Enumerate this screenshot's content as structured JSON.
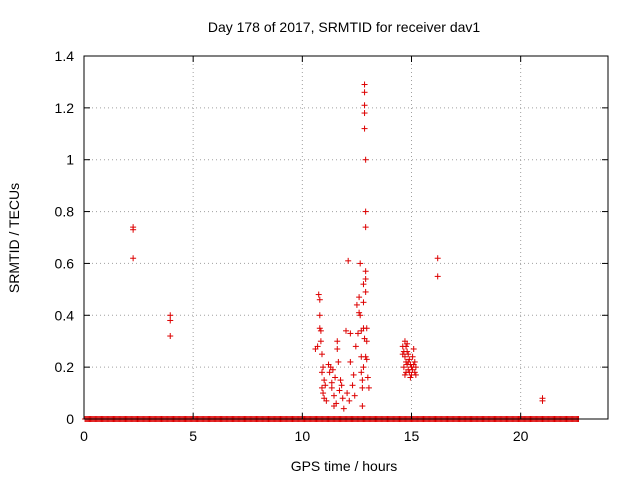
{
  "chart_data": {
    "type": "scatter",
    "title": "Day 178 of 2017, SRMTID for receiver dav1",
    "xlabel": "GPS time / hours",
    "ylabel": "SRMTID / TECUs",
    "xlim": [
      0,
      24
    ],
    "ylim": [
      0,
      1.4
    ],
    "grid": true,
    "marker": "+",
    "marker_color": "#dd0000",
    "xticks": [
      0,
      5,
      10,
      15,
      20
    ],
    "xtick_labels": [
      "0",
      "5",
      "10",
      "15",
      "20"
    ],
    "yticks": [
      0,
      0.2,
      0.4,
      0.6,
      0.8,
      1.0,
      1.2,
      1.4
    ],
    "ytick_labels": [
      "0",
      "0.2",
      "0.4",
      "0.6",
      "0.8",
      "1",
      "1.2",
      "1.4"
    ],
    "baseline": {
      "x_start": 0.05,
      "x_end": 22.65,
      "step": 0.05,
      "y": 0
    },
    "series": [
      {
        "name": "SRMTID",
        "x": [
          2.25,
          2.25,
          2.25,
          3.95,
          3.95,
          3.95,
          10.6,
          10.7,
          10.75,
          10.8,
          10.8,
          10.8,
          10.85,
          10.85,
          10.9,
          10.9,
          10.9,
          10.95,
          10.95,
          11.0,
          11.0,
          11.05,
          11.1,
          11.2,
          11.25,
          11.3,
          11.35,
          11.35,
          11.4,
          11.45,
          11.45,
          11.5,
          11.55,
          11.6,
          11.6,
          11.65,
          11.7,
          11.75,
          11.8,
          11.85,
          11.9,
          12.0,
          12.05,
          12.1,
          12.15,
          12.2,
          12.2,
          12.3,
          12.35,
          12.4,
          12.45,
          12.5,
          12.55,
          12.6,
          12.6,
          12.65,
          12.65,
          12.7,
          12.7,
          12.7,
          12.75,
          12.75,
          12.75,
          12.8,
          12.8,
          12.8,
          12.8,
          12.85,
          12.85,
          12.85,
          12.85,
          12.85,
          12.85,
          12.9,
          12.9,
          12.9,
          12.9,
          12.9,
          12.9,
          12.9,
          12.95,
          12.95,
          12.95,
          13.0,
          13.05,
          14.6,
          14.6,
          14.65,
          14.65,
          14.7,
          14.7,
          14.7,
          14.75,
          14.75,
          14.75,
          14.8,
          14.8,
          14.8,
          14.85,
          14.85,
          14.85,
          14.9,
          14.9,
          14.95,
          14.95,
          15.0,
          15.0,
          15.05,
          15.05,
          15.1,
          15.1,
          15.15,
          15.15,
          15.2,
          15.2,
          16.2,
          16.2,
          21.0,
          21.0
        ],
        "y": [
          0.74,
          0.73,
          0.62,
          0.4,
          0.38,
          0.32,
          0.27,
          0.28,
          0.48,
          0.46,
          0.4,
          0.35,
          0.34,
          0.3,
          0.25,
          0.18,
          0.12,
          0.2,
          0.1,
          0.15,
          0.08,
          0.13,
          0.07,
          0.21,
          0.18,
          0.2,
          0.14,
          0.12,
          0.19,
          0.05,
          0.09,
          0.16,
          0.06,
          0.3,
          0.27,
          0.22,
          0.11,
          0.15,
          0.13,
          0.08,
          0.04,
          0.34,
          0.1,
          0.61,
          0.07,
          0.33,
          0.22,
          0.13,
          0.17,
          0.09,
          0.28,
          0.44,
          0.33,
          0.47,
          0.41,
          0.6,
          0.4,
          0.34,
          0.24,
          0.18,
          0.15,
          0.12,
          0.05,
          0.52,
          0.45,
          0.35,
          0.2,
          1.29,
          1.26,
          1.21,
          1.18,
          1.12,
          0.31,
          1.0,
          0.8,
          0.74,
          0.57,
          0.54,
          0.49,
          0.24,
          0.35,
          0.3,
          0.23,
          0.16,
          0.12,
          0.28,
          0.25,
          0.26,
          0.2,
          0.3,
          0.24,
          0.17,
          0.28,
          0.22,
          0.18,
          0.29,
          0.26,
          0.21,
          0.25,
          0.22,
          0.19,
          0.23,
          0.18,
          0.21,
          0.16,
          0.2,
          0.17,
          0.24,
          0.19,
          0.27,
          0.21,
          0.22,
          0.18,
          0.2,
          0.17,
          0.62,
          0.55,
          0.08,
          0.07
        ]
      }
    ]
  }
}
